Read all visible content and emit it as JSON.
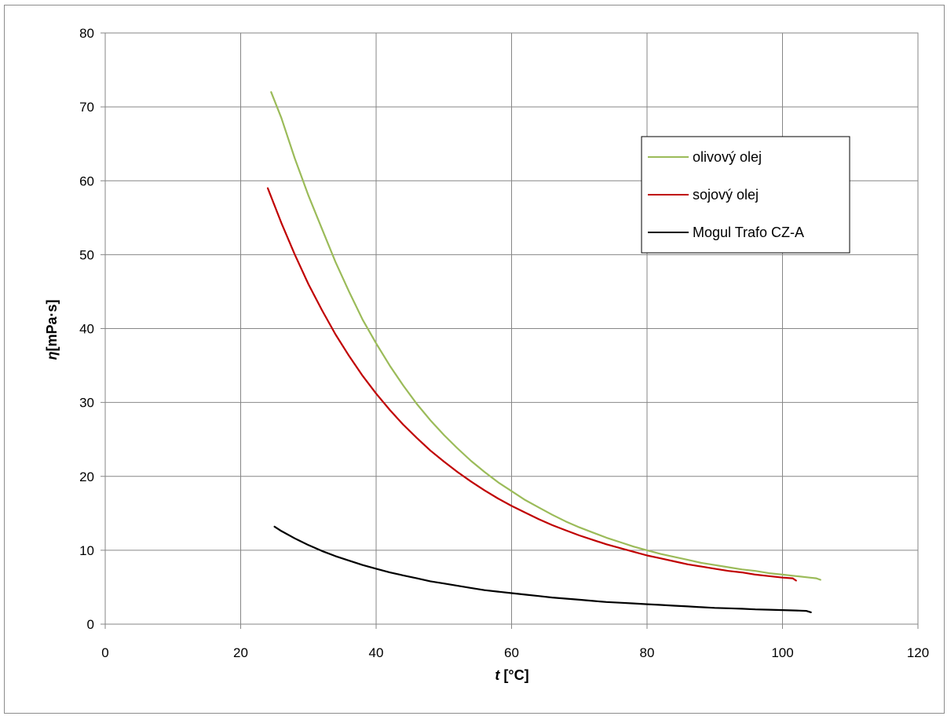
{
  "chart_data": {
    "type": "line",
    "xlabel": {
      "symbol": "t",
      "unit": " [°C]"
    },
    "ylabel": {
      "symbol": "η",
      "unit": "[mPa·s]"
    },
    "xlim": [
      0,
      120
    ],
    "ylim": [
      0,
      80
    ],
    "xticks": [
      0,
      20,
      40,
      60,
      80,
      100,
      120
    ],
    "yticks": [
      0,
      10,
      20,
      30,
      40,
      50,
      60,
      70,
      80
    ],
    "grid": true,
    "legend_position": "top-right",
    "series": [
      {
        "name": "olivový olej",
        "color": "#9bbb59",
        "points": [
          [
            24.5,
            72
          ],
          [
            26,
            68.5
          ],
          [
            28,
            63
          ],
          [
            30,
            58
          ],
          [
            32,
            53.5
          ],
          [
            34,
            49
          ],
          [
            36,
            45
          ],
          [
            38,
            41.2
          ],
          [
            40,
            38
          ],
          [
            42,
            35
          ],
          [
            44,
            32.3
          ],
          [
            46,
            29.8
          ],
          [
            48,
            27.6
          ],
          [
            50,
            25.6
          ],
          [
            52,
            23.8
          ],
          [
            54,
            22.1
          ],
          [
            56,
            20.6
          ],
          [
            58,
            19.2
          ],
          [
            60,
            18
          ],
          [
            62,
            16.8
          ],
          [
            64,
            15.8
          ],
          [
            66,
            14.8
          ],
          [
            68,
            13.9
          ],
          [
            70,
            13.1
          ],
          [
            72,
            12.4
          ],
          [
            74,
            11.7
          ],
          [
            76,
            11.1
          ],
          [
            78,
            10.5
          ],
          [
            80,
            10
          ],
          [
            82,
            9.5
          ],
          [
            84,
            9.1
          ],
          [
            86,
            8.7
          ],
          [
            88,
            8.3
          ],
          [
            90,
            8
          ],
          [
            92,
            7.7
          ],
          [
            94,
            7.4
          ],
          [
            96,
            7.2
          ],
          [
            98,
            6.9
          ],
          [
            100,
            6.7
          ],
          [
            102,
            6.5
          ],
          [
            104,
            6.3
          ],
          [
            105,
            6.2
          ],
          [
            105.6,
            6
          ]
        ]
      },
      {
        "name": "sojový olej",
        "color": "#c00000",
        "points": [
          [
            24,
            59
          ],
          [
            26,
            54.3
          ],
          [
            28,
            50
          ],
          [
            30,
            46
          ],
          [
            32,
            42.5
          ],
          [
            34,
            39.2
          ],
          [
            36,
            36.3
          ],
          [
            38,
            33.6
          ],
          [
            40,
            31.2
          ],
          [
            42,
            29
          ],
          [
            44,
            27
          ],
          [
            46,
            25.2
          ],
          [
            48,
            23.5
          ],
          [
            50,
            22
          ],
          [
            52,
            20.6
          ],
          [
            54,
            19.3
          ],
          [
            56,
            18.1
          ],
          [
            58,
            17
          ],
          [
            60,
            16
          ],
          [
            62,
            15.1
          ],
          [
            64,
            14.2
          ],
          [
            66,
            13.4
          ],
          [
            68,
            12.7
          ],
          [
            70,
            12
          ],
          [
            72,
            11.4
          ],
          [
            74,
            10.8
          ],
          [
            76,
            10.3
          ],
          [
            78,
            9.8
          ],
          [
            80,
            9.3
          ],
          [
            82,
            8.9
          ],
          [
            84,
            8.5
          ],
          [
            86,
            8.1
          ],
          [
            88,
            7.8
          ],
          [
            90,
            7.5
          ],
          [
            92,
            7.2
          ],
          [
            94,
            7
          ],
          [
            96,
            6.7
          ],
          [
            98,
            6.5
          ],
          [
            100,
            6.3
          ],
          [
            101.5,
            6.2
          ],
          [
            102,
            5.9
          ]
        ]
      },
      {
        "name": "Mogul Trafo CZ-A",
        "color": "#000000",
        "points": [
          [
            25,
            13.2
          ],
          [
            26,
            12.6
          ],
          [
            28,
            11.6
          ],
          [
            30,
            10.7
          ],
          [
            32,
            9.9
          ],
          [
            34,
            9.2
          ],
          [
            36,
            8.6
          ],
          [
            38,
            8
          ],
          [
            40,
            7.5
          ],
          [
            42,
            7
          ],
          [
            44,
            6.6
          ],
          [
            46,
            6.2
          ],
          [
            48,
            5.8
          ],
          [
            50,
            5.5
          ],
          [
            52,
            5.2
          ],
          [
            54,
            4.9
          ],
          [
            56,
            4.6
          ],
          [
            58,
            4.4
          ],
          [
            60,
            4.2
          ],
          [
            62,
            4
          ],
          [
            64,
            3.8
          ],
          [
            66,
            3.6
          ],
          [
            68,
            3.45
          ],
          [
            70,
            3.3
          ],
          [
            72,
            3.15
          ],
          [
            74,
            3
          ],
          [
            76,
            2.9
          ],
          [
            78,
            2.8
          ],
          [
            80,
            2.7
          ],
          [
            82,
            2.6
          ],
          [
            84,
            2.5
          ],
          [
            86,
            2.4
          ],
          [
            88,
            2.3
          ],
          [
            90,
            2.2
          ],
          [
            92,
            2.15
          ],
          [
            94,
            2.08
          ],
          [
            96,
            2
          ],
          [
            98,
            1.95
          ],
          [
            100,
            1.9
          ],
          [
            102,
            1.85
          ],
          [
            103.5,
            1.8
          ],
          [
            104.2,
            1.6
          ]
        ]
      }
    ]
  }
}
